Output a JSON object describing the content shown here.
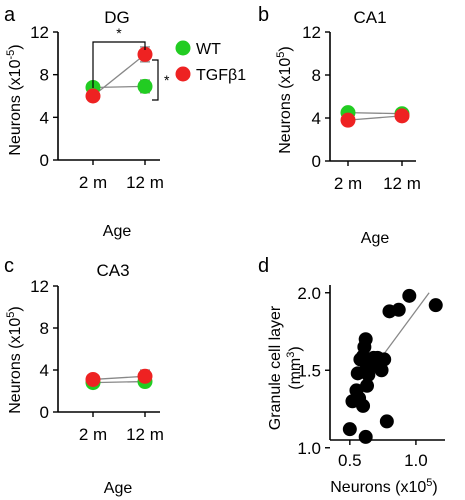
{
  "colors": {
    "wt": "#22cc22",
    "tgf": "#ee2222",
    "scatter": "#000000",
    "line": "#888888"
  },
  "legend": {
    "wt": "WT",
    "tgf": "TGFβ1"
  },
  "chart_data": [
    {
      "id": "a",
      "letter": "a",
      "type": "line",
      "title": "DG",
      "categories": [
        "2 m",
        "12 m"
      ],
      "xlabel": "Age",
      "ylabel_main": "Neurons (x10",
      "ylabel_sup": "-5",
      "ylabel_end": ")",
      "ylim": [
        0,
        12
      ],
      "yticks": [
        "0",
        "4",
        "8",
        "12"
      ],
      "ytick_values": [
        0,
        4,
        8,
        12
      ],
      "series": [
        {
          "name": "WT",
          "color_key": "wt",
          "values": [
            6.8,
            6.9
          ],
          "errors": [
            0.3,
            0.6
          ]
        },
        {
          "name": "TGFβ1",
          "color_key": "tgf",
          "values": [
            6.0,
            9.9
          ],
          "errors": [
            0.3,
            0.7
          ]
        }
      ],
      "annotations": [
        "*",
        "*"
      ]
    },
    {
      "id": "b",
      "letter": "b",
      "type": "line",
      "title": "CA1",
      "categories": [
        "2 m",
        "12 m"
      ],
      "xlabel": "Age",
      "ylabel_main": "Neurons (x10",
      "ylabel_sup": "5",
      "ylabel_end": ")",
      "ylim": [
        0,
        12
      ],
      "yticks": [
        "0",
        "4",
        "8",
        "12"
      ],
      "ytick_values": [
        0,
        4,
        8,
        12
      ],
      "series": [
        {
          "name": "WT",
          "color_key": "wt",
          "values": [
            4.5,
            4.4
          ],
          "errors": [
            0.2,
            0.2
          ]
        },
        {
          "name": "TGFβ1",
          "color_key": "tgf",
          "values": [
            3.8,
            4.2
          ],
          "errors": [
            0.2,
            0.2
          ]
        }
      ]
    },
    {
      "id": "c",
      "letter": "c",
      "type": "line",
      "title": "CA3",
      "categories": [
        "2 m",
        "12 m"
      ],
      "xlabel": "Age",
      "ylabel_main": "Neurons (x10",
      "ylabel_sup": "5",
      "ylabel_end": ")",
      "ylim": [
        0,
        12
      ],
      "yticks": [
        "0",
        "4",
        "8",
        "12"
      ],
      "ytick_values": [
        0,
        4,
        8,
        12
      ],
      "series": [
        {
          "name": "WT",
          "color_key": "wt",
          "values": [
            2.8,
            2.9
          ],
          "errors": [
            0.3,
            0.3
          ]
        },
        {
          "name": "TGFβ1",
          "color_key": "tgf",
          "values": [
            3.1,
            3.4
          ],
          "errors": [
            0.3,
            0.6
          ]
        }
      ]
    },
    {
      "id": "d",
      "letter": "d",
      "type": "scatter",
      "xlabel_main": "Neurons (x10",
      "xlabel_sup": "5",
      "xlabel_end": ")",
      "ylabel_line1": "Granule cell layer",
      "ylabel_line2_main": "(mm",
      "ylabel_line2_sup": "3",
      "ylabel_line2_end": ")",
      "xlim": [
        0.35,
        1.22
      ],
      "ylim": [
        1.05,
        2.05
      ],
      "xticks": [
        "0.5",
        "1.0"
      ],
      "xtick_values": [
        0.5,
        1.0
      ],
      "yticks": [
        "1.0",
        "1.5",
        "2.0"
      ],
      "ytick_values": [
        1.0,
        1.5,
        2.0
      ],
      "points": [
        [
          0.5,
          1.12
        ],
        [
          0.52,
          1.3
        ],
        [
          0.55,
          1.37
        ],
        [
          0.56,
          1.48
        ],
        [
          0.58,
          1.57
        ],
        [
          0.57,
          1.32
        ],
        [
          0.6,
          1.59
        ],
        [
          0.61,
          1.65
        ],
        [
          0.62,
          1.7
        ],
        [
          0.63,
          1.52
        ],
        [
          0.64,
          1.47
        ],
        [
          0.63,
          1.4
        ],
        [
          0.65,
          1.57
        ],
        [
          0.68,
          1.58
        ],
        [
          0.7,
          1.53
        ],
        [
          0.71,
          1.58
        ],
        [
          0.6,
          1.27
        ],
        [
          0.74,
          1.5
        ],
        [
          0.62,
          1.07
        ],
        [
          0.76,
          1.57
        ],
        [
          0.78,
          1.17
        ],
        [
          0.8,
          1.88
        ],
        [
          0.87,
          1.89
        ],
        [
          0.95,
          1.98
        ],
        [
          1.15,
          1.92
        ]
      ],
      "fit": [
        [
          0.52,
          1.33
        ],
        [
          1.1,
          2.0
        ]
      ]
    }
  ]
}
